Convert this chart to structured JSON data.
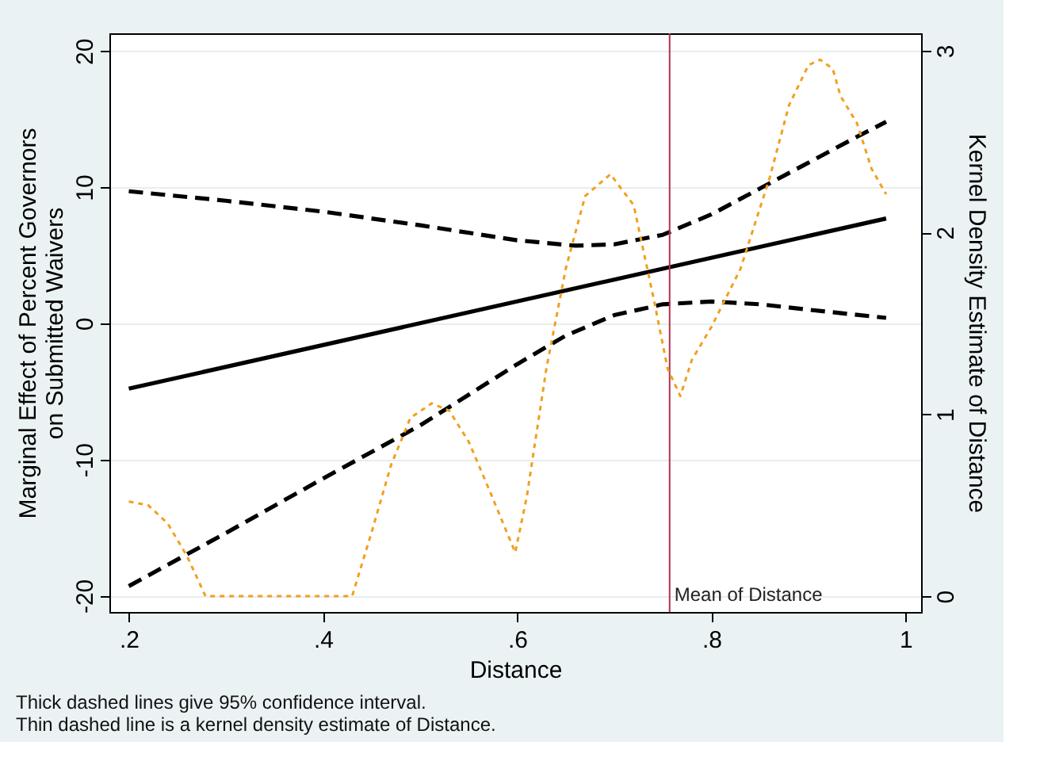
{
  "chart_data": {
    "type": "line",
    "xlabel": "Distance",
    "ylabel": "Marginal Effect of Percent Governors\non Submitted Waivers",
    "y2label": "Kernel Density Estimate of Distance",
    "xlim": [
      0.18,
      1.016
    ],
    "xticks": [
      {
        "value": 0.2,
        "label": ".2"
      },
      {
        "value": 0.4,
        "label": ".4"
      },
      {
        "value": 0.6,
        "label": ".6"
      },
      {
        "value": 0.8,
        "label": ".8"
      },
      1
    ],
    "ylim": [
      -21.2,
      21.3
    ],
    "yticks": [
      -20,
      -10,
      0,
      10,
      20
    ],
    "y2lim": [
      -0.087,
      3.095
    ],
    "y2ticks": [
      0,
      1,
      2,
      3
    ],
    "grid": "y",
    "marker": "none",
    "series": [
      {
        "color": "#000000",
        "line_style": "solid",
        "x": [
          0.2,
          0.98
        ],
        "values": [
          -4.8,
          7.7
        ]
      },
      {
        "color": "#000000",
        "line_style": "dashed",
        "x": [
          0.2,
          0.3,
          0.4,
          0.5,
          0.6,
          0.66,
          0.7,
          0.75,
          0.8,
          0.85,
          0.9,
          0.95,
          0.98
        ],
        "values": [
          9.7,
          9.0,
          8.2,
          7.2,
          6.1,
          5.7,
          5.8,
          6.5,
          8.0,
          9.9,
          11.8,
          13.7,
          14.8
        ]
      },
      {
        "color": "#000000",
        "line_style": "dashed",
        "x": [
          0.2,
          0.3,
          0.4,
          0.5,
          0.6,
          0.65,
          0.7,
          0.75,
          0.8,
          0.85,
          0.9,
          0.98
        ],
        "values": [
          -19.3,
          -15.4,
          -11.4,
          -7.5,
          -3.0,
          -0.9,
          0.6,
          1.4,
          1.6,
          1.4,
          1.0,
          0.4
        ]
      },
      {
        "color": "#f0a020",
        "line_style": "dotted",
        "axis": "y2",
        "x": [
          0.2,
          0.22,
          0.24,
          0.26,
          0.279,
          0.43,
          0.45,
          0.47,
          0.49,
          0.512,
          0.53,
          0.55,
          0.57,
          0.598,
          0.61,
          0.63,
          0.65,
          0.67,
          0.696,
          0.72,
          0.74,
          0.755,
          0.768,
          0.78,
          0.8,
          0.83,
          0.86,
          0.88,
          0.9,
          0.912,
          0.925,
          0.933,
          0.95,
          0.965,
          0.98
        ],
        "values": [
          0.52,
          0.5,
          0.4,
          0.22,
          0,
          0,
          0.35,
          0.72,
          0.98,
          1.06,
          1.02,
          0.85,
          0.6,
          0.24,
          0.55,
          1.25,
          1.8,
          2.2,
          2.32,
          2.15,
          1.65,
          1.25,
          1.1,
          1.3,
          1.48,
          1.8,
          2.3,
          2.7,
          2.92,
          2.95,
          2.9,
          2.75,
          2.6,
          2.35,
          2.21
        ]
      }
    ],
    "ref_lines": [
      {
        "axis": "x",
        "value": 0.757,
        "label": "Mean of Distance",
        "color": "#b03050"
      }
    ],
    "annotations": [
      "Thick dashed lines give 95% confidence interval.",
      "Thin dashed line is a kernel density estimate of Distance."
    ]
  }
}
